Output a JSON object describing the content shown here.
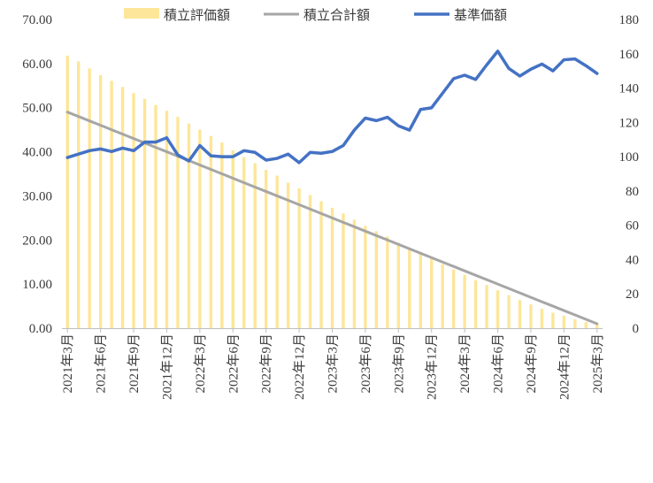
{
  "chart_data": {
    "type": "bar+line",
    "categories": [
      "2021年3月",
      "2021年4月",
      "2021年5月",
      "2021年6月",
      "2021年7月",
      "2021年8月",
      "2021年9月",
      "2021年10月",
      "2021年11月",
      "2021年12月",
      "2022年1月",
      "2022年2月",
      "2022年3月",
      "2022年4月",
      "2022年5月",
      "2022年6月",
      "2022年7月",
      "2022年8月",
      "2022年9月",
      "2022年10月",
      "2022年11月",
      "2022年12月",
      "2023年1月",
      "2023年2月",
      "2023年3月",
      "2023年4月",
      "2023年5月",
      "2023年6月",
      "2023年7月",
      "2023年8月",
      "2023年9月",
      "2023年10月",
      "2023年11月",
      "2023年12月",
      "2024年1月",
      "2024年2月",
      "2024年3月",
      "2024年4月",
      "2024年5月",
      "2024年6月",
      "2024年7月",
      "2024年8月",
      "2024年9月",
      "2024年10月",
      "2024年11月",
      "2024年12月",
      "2025年1月",
      "2025年2月",
      "2025年3月"
    ],
    "x_tick_labels": [
      "2021年3月",
      "2021年6月",
      "2021年9月",
      "2021年12月",
      "2022年3月",
      "2022年6月",
      "2022年9月",
      "2022年12月",
      "2023年3月",
      "2023年6月",
      "2023年9月",
      "2023年12月",
      "2024年3月",
      "2024年6月",
      "2024年9月",
      "2024年12月",
      "2025年3月"
    ],
    "x_tick_every": 3,
    "y_left": {
      "min": 0,
      "max": 70,
      "step": 10,
      "ticks": [
        "0.00",
        "10.00",
        "20.00",
        "30.00",
        "40.00",
        "50.00",
        "60.00",
        "70.00"
      ]
    },
    "y_right": {
      "min": 0,
      "max": 180,
      "step": 20,
      "ticks": [
        "0",
        "20",
        "40",
        "60",
        "80",
        "100",
        "120",
        "140",
        "160",
        "180"
      ]
    },
    "legend_position": "top",
    "grid": false,
    "series": [
      {
        "name": "積立評価額",
        "type": "bar",
        "axis": "left",
        "color": "#fde699",
        "values": [
          61.8,
          60.5,
          58.9,
          57.4,
          56.1,
          54.7,
          53.3,
          52.0,
          50.6,
          49.3,
          47.9,
          46.4,
          45.0,
          43.6,
          42.1,
          40.3,
          38.8,
          37.4,
          35.9,
          34.6,
          33.0,
          31.7,
          30.2,
          28.8,
          27.3,
          26.0,
          24.6,
          23.2,
          22.0,
          20.8,
          19.4,
          18.2,
          16.9,
          15.7,
          14.5,
          13.3,
          12.1,
          10.9,
          9.8,
          8.6,
          7.5,
          6.4,
          5.4,
          4.4,
          3.5,
          2.8,
          2.0,
          1.4,
          0.9
        ]
      },
      {
        "name": "積立合計額",
        "type": "line",
        "axis": "left",
        "color": "#a6a6a6",
        "values": [
          49.0,
          48.0,
          47.0,
          46.0,
          45.0,
          44.0,
          43.0,
          42.0,
          41.0,
          40.0,
          39.0,
          38.0,
          37.0,
          36.0,
          35.0,
          34.0,
          33.0,
          32.0,
          31.0,
          30.0,
          29.0,
          28.0,
          27.0,
          26.0,
          25.0,
          24.0,
          23.0,
          22.0,
          21.0,
          20.0,
          19.0,
          18.0,
          17.0,
          16.0,
          15.0,
          14.0,
          13.0,
          12.0,
          11.0,
          10.0,
          9.0,
          8.0,
          7.0,
          6.0,
          5.0,
          4.0,
          3.0,
          2.0,
          1.0
        ]
      },
      {
        "name": "基準価額",
        "type": "line",
        "axis": "right",
        "color": "#4472c4",
        "values": [
          99.5,
          101.5,
          103.5,
          104.5,
          103.0,
          105.0,
          103.5,
          108.5,
          108.5,
          111.0,
          101.0,
          97.5,
          106.5,
          100.5,
          100.0,
          100.0,
          103.5,
          102.5,
          98.0,
          99.0,
          101.5,
          96.5,
          102.5,
          102.0,
          103.0,
          106.5,
          115.5,
          122.5,
          121.0,
          123.0,
          118.0,
          115.5,
          127.5,
          128.5,
          137.0,
          145.5,
          147.5,
          145.0,
          153.5,
          161.5,
          151.5,
          147.0,
          151.0,
          154.0,
          150.0,
          156.5,
          157.0,
          153.0,
          148.5
        ]
      }
    ]
  }
}
